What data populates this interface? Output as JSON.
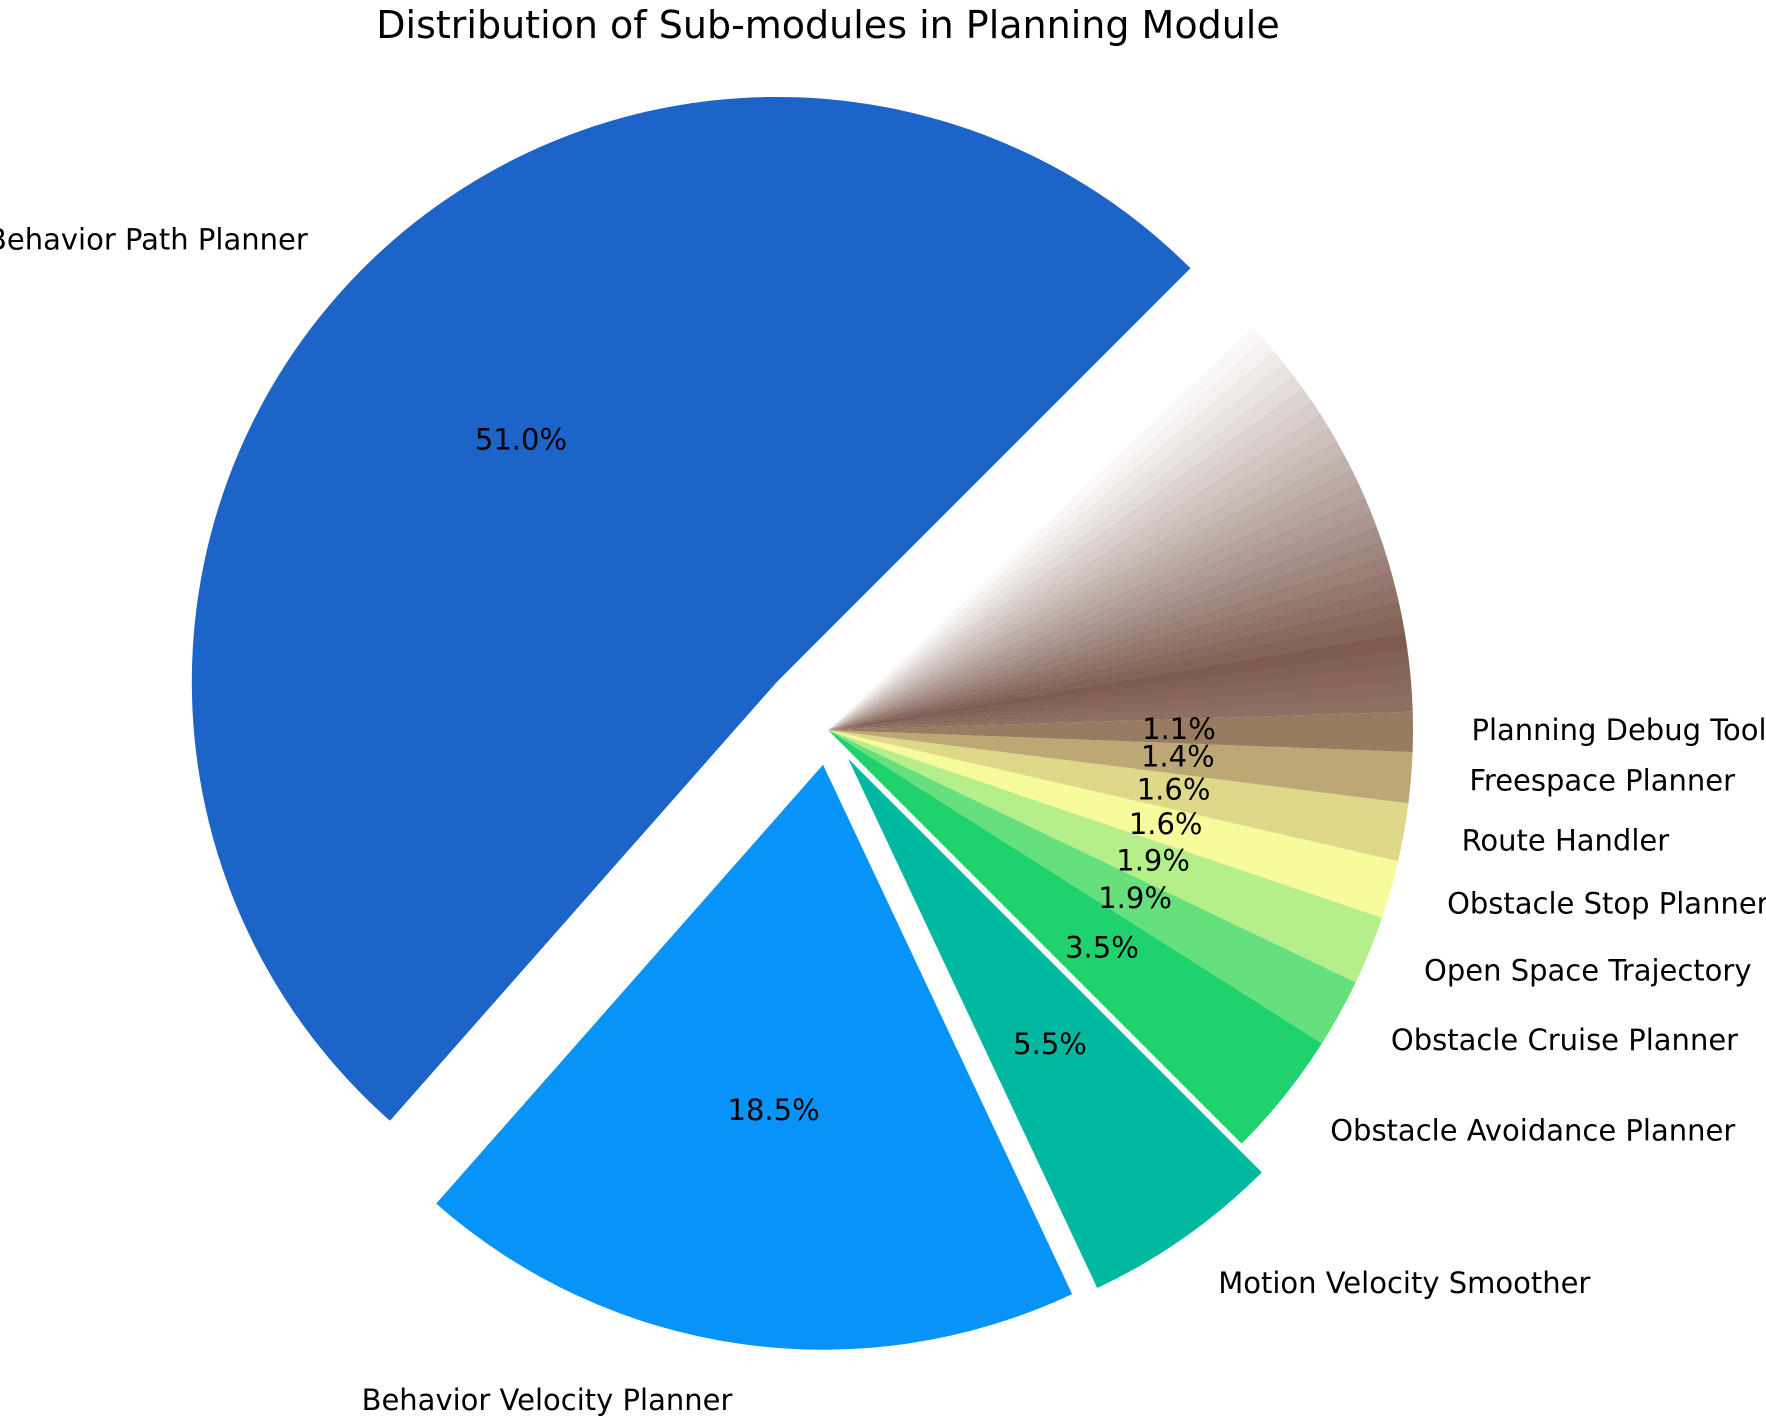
{
  "chart_data": {
    "type": "pie",
    "title": "Distribution of Sub-modules in Planning Module",
    "slices": [
      {
        "label": "Behavior Path Planner",
        "value": 51.0,
        "pct_label": "51.0%",
        "color": "#1d64c8",
        "explode": 0.12
      },
      {
        "label": "Behavior Velocity Planner",
        "value": 18.5,
        "pct_label": "18.5%",
        "color": "#0793f8",
        "explode": 0.06
      },
      {
        "label": "Motion Velocity Smoother",
        "value": 5.5,
        "pct_label": "5.5%",
        "color": "#00b8a0",
        "explode": 0.06
      },
      {
        "label": "Obstacle Avoidance Planner",
        "value": 3.5,
        "pct_label": "3.5%",
        "color": "#20d26e",
        "explode": 0
      },
      {
        "label": "Obstacle Cruise Planner",
        "value": 1.9,
        "pct_label": "1.9%",
        "color": "#66e07c",
        "explode": 0
      },
      {
        "label": "Open Space Trajectory",
        "value": 1.9,
        "pct_label": "1.9%",
        "color": "#b4ef8a",
        "explode": 0
      },
      {
        "label": "Obstacle Stop Planner",
        "value": 1.6,
        "pct_label": "1.6%",
        "color": "#f8fb9c",
        "explode": 0
      },
      {
        "label": "Route Handler",
        "value": 1.6,
        "pct_label": "1.6%",
        "color": "#e0d889",
        "explode": 0
      },
      {
        "label": "Freespace Planner",
        "value": 1.4,
        "pct_label": "1.4%",
        "color": "#bda774",
        "explode": 0
      },
      {
        "label": "Planning Debug Tools",
        "value": 1.1,
        "pct_label": "1.1%",
        "color": "#987b60",
        "explode": 0
      }
    ],
    "unlabeled_remainder": {
      "value": 12.0,
      "count": 28,
      "color_start": "#8f6e63",
      "color_dark": "#7e5c50",
      "color_end": "#ffffff"
    },
    "start_angle_deg": 45,
    "direction": "counterclockwise"
  }
}
